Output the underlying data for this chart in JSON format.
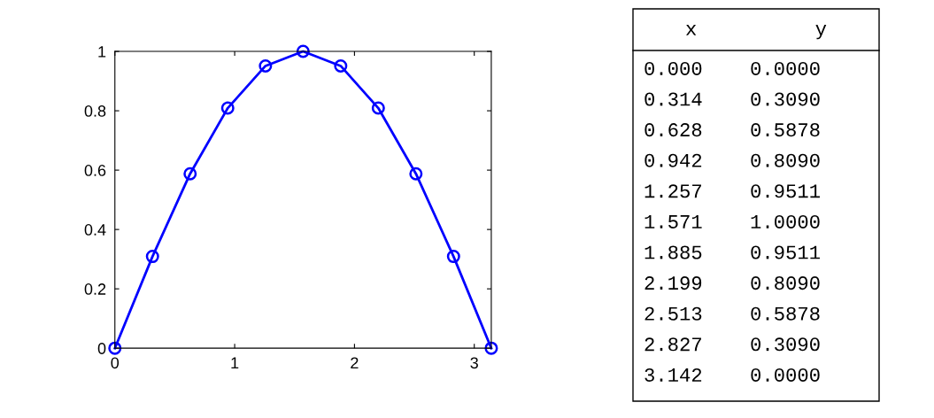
{
  "chart_data": [
    {
      "type": "line",
      "x": [
        0.0,
        0.314,
        0.628,
        0.942,
        1.257,
        1.571,
        1.885,
        2.199,
        2.513,
        2.827,
        3.142
      ],
      "series": [
        {
          "color": "#0000ff",
          "values": [
            0.0,
            0.309,
            0.5878,
            0.809,
            0.9511,
            1.0,
            0.9511,
            0.809,
            0.5878,
            0.309,
            0.0
          ]
        }
      ],
      "xlim": [
        0,
        3.142
      ],
      "xticks": [
        0,
        1,
        2,
        3
      ],
      "ylim": [
        0,
        1
      ],
      "yticks": [
        0,
        0.2,
        0.4,
        0.6,
        0.8,
        1
      ],
      "marker": "circle",
      "line_style": "solid",
      "grid": false,
      "legend": false
    },
    {
      "type": "other",
      "annotations": [
        "x          y",
        "0.000    0.0000",
        "0.314    0.3090",
        "0.628    0.5878",
        "0.942    0.8090",
        "1.257    0.9511",
        "1.571    1.0000",
        "1.885    0.9511",
        "2.199    0.8090",
        "2.513    0.5878",
        "2.827    0.3090",
        "3.142    0.0000"
      ]
    }
  ]
}
